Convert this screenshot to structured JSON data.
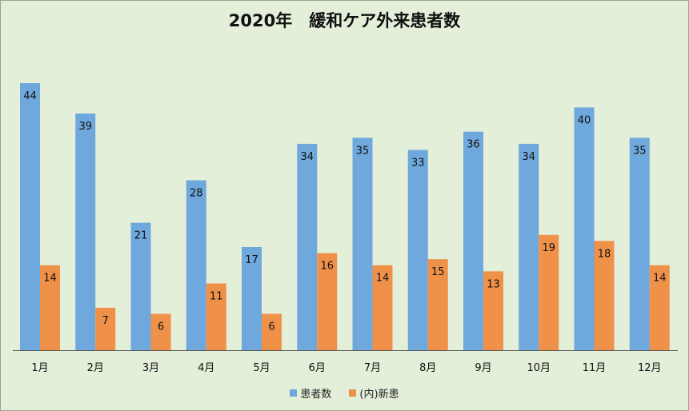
{
  "chart_data": {
    "type": "bar",
    "title": "2020年　緩和ケア外来患者数",
    "categories": [
      "1月",
      "2月",
      "3月",
      "4月",
      "5月",
      "6月",
      "7月",
      "8月",
      "9月",
      "10月",
      "11月",
      "12月"
    ],
    "series": [
      {
        "name": "患者数",
        "color": "#6fa8dc",
        "values": [
          44,
          39,
          21,
          28,
          17,
          34,
          35,
          33,
          36,
          34,
          40,
          35
        ]
      },
      {
        "name": "(内)新患",
        "color": "#f0914a",
        "values": [
          14,
          7,
          6,
          11,
          6,
          16,
          14,
          15,
          13,
          19,
          18,
          14
        ]
      }
    ],
    "ylim": [
      0,
      44
    ],
    "legend": "bottom",
    "grid": false
  }
}
